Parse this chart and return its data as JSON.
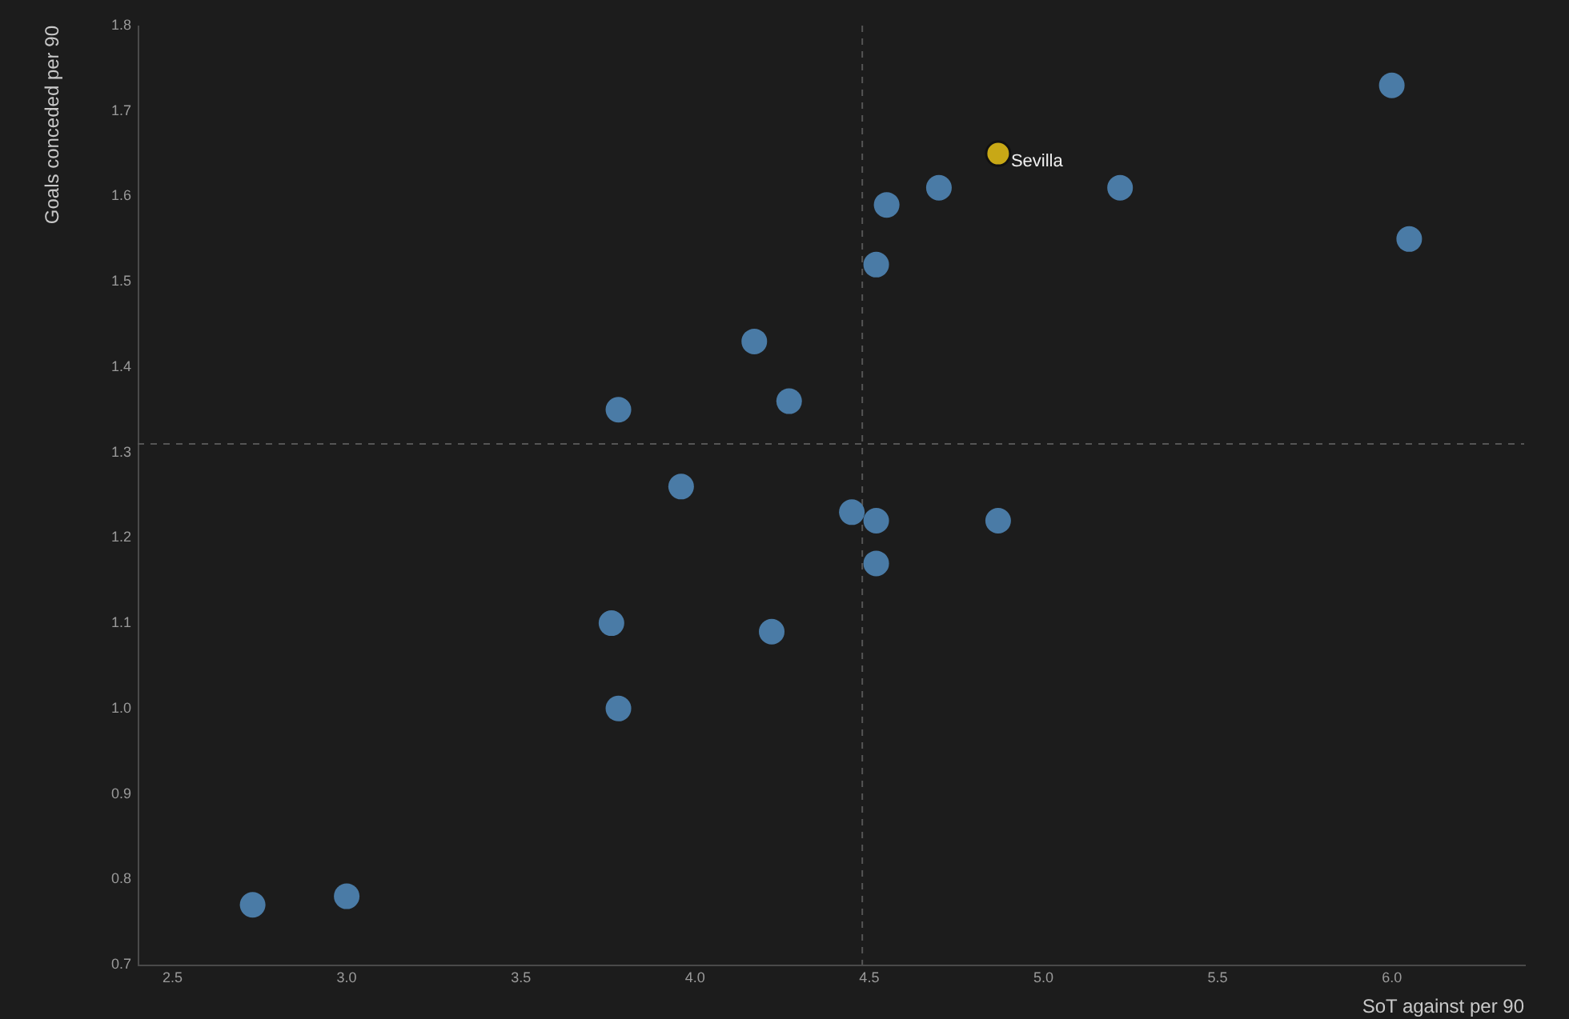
{
  "chart_data": {
    "type": "scatter",
    "xlabel": "SoT against per 90",
    "ylabel": "Goals conceded per 90",
    "xlim": [
      2.4,
      6.38
    ],
    "ylim": [
      0.7,
      1.8
    ],
    "xticks": [
      2.5,
      {
        "value": 3,
        "label": "3.0"
      },
      3.5,
      {
        "value": 4,
        "label": "4.0"
      },
      4.5,
      {
        "value": 5,
        "label": "5.0"
      },
      5.5,
      {
        "value": 6,
        "label": "6.0"
      }
    ],
    "yticks": [
      0.7,
      0.8,
      0.9,
      {
        "value": 1,
        "label": "1.0"
      },
      1.1,
      1.2,
      1.3,
      1.4,
      1.5,
      1.6,
      1.7,
      1.8
    ],
    "series": [
      {
        "color": "#4a7ba6",
        "x": [
          2.73,
          3.0,
          3.76,
          3.78,
          3.78,
          3.96,
          4.17,
          4.22,
          4.27,
          4.45,
          4.52,
          4.52,
          4.52,
          4.55,
          4.7,
          4.87,
          5.22,
          6.0,
          6.05
        ],
        "values": [
          0.77,
          0.78,
          1.1,
          1.0,
          1.35,
          1.26,
          1.43,
          1.09,
          1.36,
          1.23,
          1.52,
          1.22,
          1.17,
          1.59,
          1.61,
          1.22,
          1.61,
          1.73,
          1.55
        ]
      },
      {
        "name": "Sevilla",
        "color": "#c8a816",
        "x": [
          4.87
        ],
        "values": [
          1.65
        ]
      }
    ],
    "ref_lines": [
      {
        "axis": "x",
        "value": 4.48,
        "color": "#555555",
        "line_style": "dashed"
      },
      {
        "axis": "y",
        "value": 1.31,
        "color": "#555555",
        "line_style": "dashed"
      }
    ],
    "grid": false,
    "legend": false,
    "marker": "circle"
  }
}
